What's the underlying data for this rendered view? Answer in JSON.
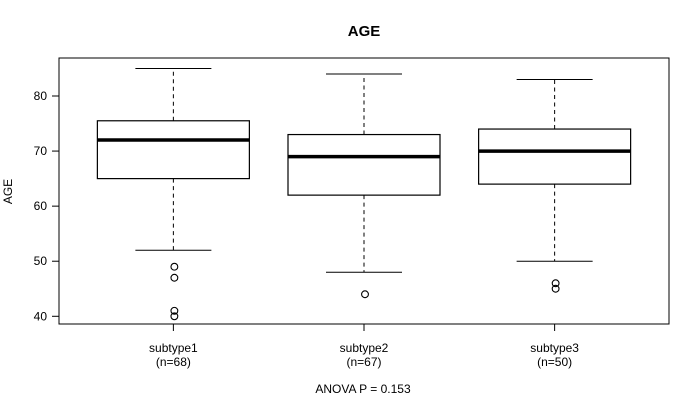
{
  "chart_data": {
    "type": "boxplot",
    "title": "AGE",
    "xlabel": "",
    "ylabel": "AGE",
    "annotation": "ANOVA P = 0.153",
    "yticks": [
      40,
      50,
      60,
      70,
      80
    ],
    "ylim": [
      38.6,
      86.9
    ],
    "grid": false,
    "legend": "none",
    "categories": [
      "subtype1",
      "subtype2",
      "subtype3"
    ],
    "category_sublabels": [
      "(n=68)",
      "(n=67)",
      "(n=50)"
    ],
    "series": [
      {
        "name": "subtype1",
        "n": 68,
        "whisker_low": 52,
        "q1": 65,
        "median": 72,
        "q3": 75.5,
        "whisker_high": 85,
        "outliers": [
          49,
          47,
          41,
          40
        ]
      },
      {
        "name": "subtype2",
        "n": 67,
        "whisker_low": 48,
        "q1": 62,
        "median": 69,
        "q3": 73,
        "whisker_high": 84,
        "outliers": [
          44
        ]
      },
      {
        "name": "subtype3",
        "n": 50,
        "whisker_low": 50,
        "q1": 64,
        "median": 70,
        "q3": 74,
        "whisker_high": 83,
        "outliers": [
          46,
          45
        ]
      }
    ],
    "colors": {
      "line": "#000000",
      "box_fill": "#ffffff",
      "background": "#ffffff"
    }
  }
}
